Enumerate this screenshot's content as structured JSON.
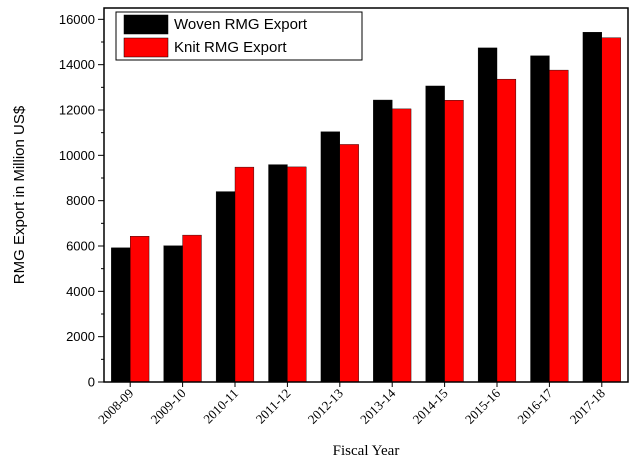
{
  "chart_data": {
    "type": "bar",
    "categories": [
      "2008-09",
      "2009-10",
      "2010-11",
      "2011-12",
      "2012-13",
      "2013-14",
      "2014-15",
      "2015-16",
      "2016-17",
      "2017-18"
    ],
    "series": [
      {
        "name": "Woven RMG Export",
        "color": "#000000",
        "values": [
          5920,
          6010,
          8400,
          9590,
          11040,
          12440,
          13060,
          14740,
          14390,
          15430
        ]
      },
      {
        "name": "Knit RMG Export",
        "color": "#ff0000",
        "values": [
          6430,
          6480,
          9480,
          9490,
          10480,
          12050,
          12430,
          13360,
          13760,
          15190
        ]
      }
    ],
    "xlabel": "Fiscal Year",
    "ylabel": "RMG Export in Million US$",
    "ylim": [
      0,
      16500
    ],
    "yticks": [
      0,
      2000,
      4000,
      6000,
      8000,
      10000,
      12000,
      14000,
      16000
    ],
    "legend": "top-left",
    "grid": false
  }
}
